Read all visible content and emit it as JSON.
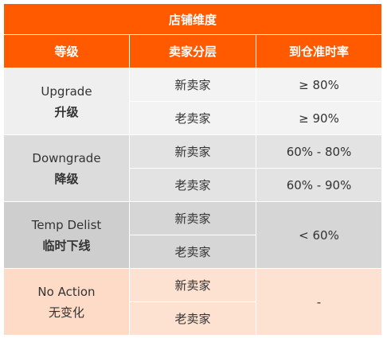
{
  "table": {
    "title": "店铺维度",
    "headers": [
      "等级",
      "卖家分层",
      "到仓准时率"
    ],
    "groups": [
      {
        "level_en": "Upgrade",
        "level_zh": "升级",
        "rows": [
          {
            "seller": "新卖家",
            "rate": "≥ 80%"
          },
          {
            "seller": "老卖家",
            "rate": "≥ 90%"
          }
        ]
      },
      {
        "level_en": "Downgrade",
        "level_zh": "降级",
        "rows": [
          {
            "seller": "新卖家",
            "rate": "60% - 80%"
          },
          {
            "seller": "老卖家",
            "rate": "60% - 90%"
          }
        ]
      },
      {
        "level_en": "Temp Delist",
        "level_zh": "临时下线",
        "rows": [
          {
            "seller": "新卖家"
          },
          {
            "seller": "老卖家"
          }
        ],
        "rate_merged": "< 60%"
      },
      {
        "level_en": "No Action",
        "level_zh": "无变化",
        "rows": [
          {
            "seller": "新卖家"
          },
          {
            "seller": "老卖家"
          }
        ],
        "rate_merged": "-"
      }
    ]
  },
  "colors": {
    "header_orange": "#FF5A00",
    "upgrade_bg": "#F3F3F3",
    "downgrade_bg": "#E3E3E3",
    "delist_bg": "#D6D6D6",
    "noaction_bg": "#FDE2D2"
  }
}
